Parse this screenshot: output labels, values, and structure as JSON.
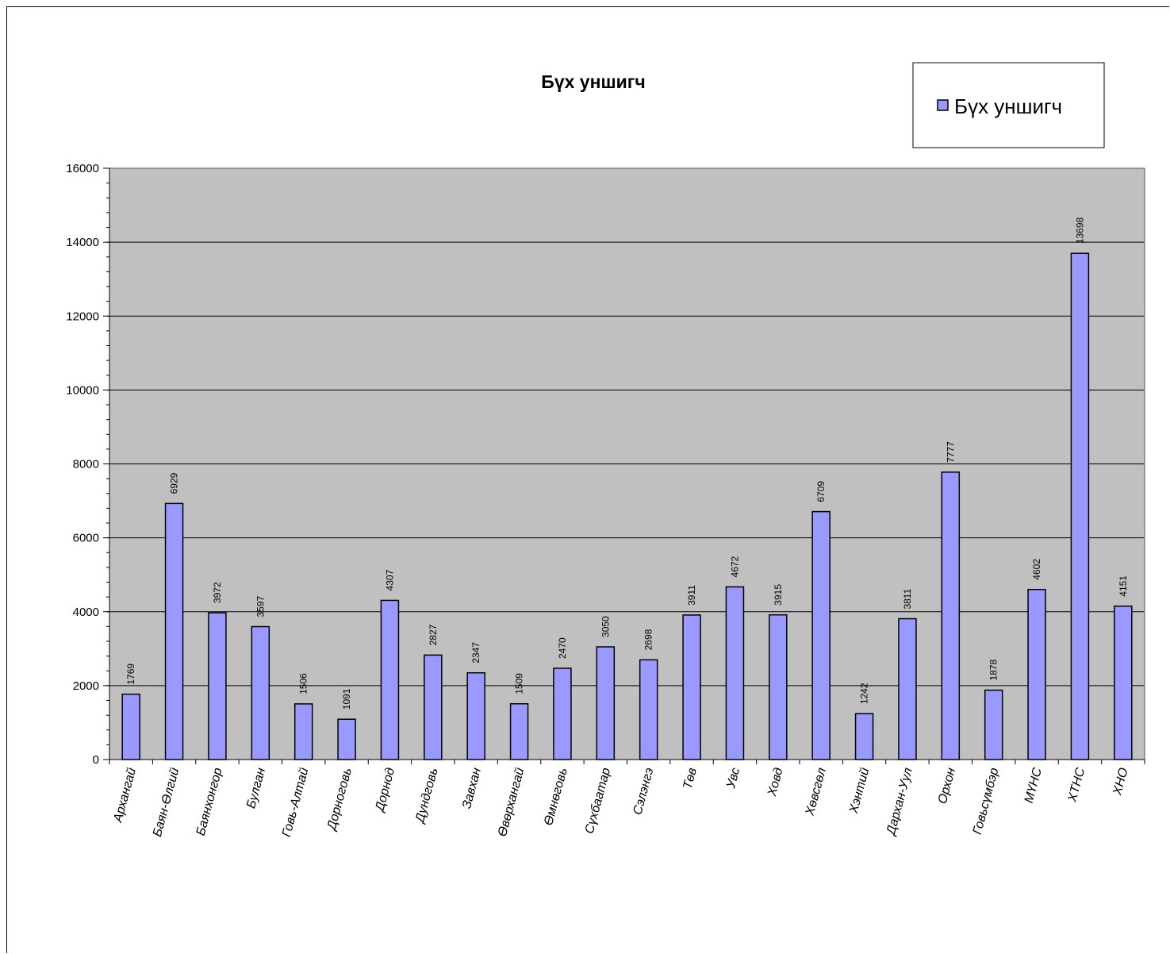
{
  "chart_data": {
    "type": "bar",
    "title": "Бүх уншигч",
    "legend": {
      "entries": [
        "Бүх уншигч"
      ],
      "placement": "top-right"
    },
    "categories": [
      "Архангай",
      "Баян-Өлгий",
      "Баянхонгор",
      "Булган",
      "Говь-Алтай",
      "Дорноговь",
      "Дорнод",
      "Дундговь",
      "Завхан",
      "Өвөрхангай",
      "Өмнөговь",
      "Сүхбаатар",
      "Сэлэнгэ",
      "Төв",
      "Увс",
      "Ховд",
      "Хөвсгөл",
      "Хэнтий",
      "Дархан-Уул",
      "Орхон",
      "Говьсүмбэр",
      "МҮНС",
      "ХТНС",
      "ХНО"
    ],
    "series": [
      {
        "name": "Бүх уншигч",
        "values": [
          1769,
          6929,
          3972,
          3597,
          1506,
          1091,
          4307,
          2827,
          2347,
          1509,
          2470,
          3050,
          2698,
          3911,
          4672,
          3915,
          6709,
          1242,
          3811,
          7777,
          1878,
          4602,
          13698,
          4151
        ]
      }
    ],
    "data_labels": [
      "1769",
      "6929",
      "3972",
      "3597",
      "1506",
      "1091",
      "4307",
      "2827",
      "2347",
      "1509",
      "2470",
      "3050",
      "2698",
      "3911",
      "4672",
      "3915",
      "6709",
      "1242",
      "3811",
      "7777",
      "1878",
      "4602",
      "13698",
      "4151"
    ],
    "y_ticks": [
      "0",
      "2000",
      "4000",
      "6000",
      "8000",
      "10000",
      "12000",
      "14000",
      "16000"
    ],
    "ylim": [
      0,
      16000
    ],
    "grid": true,
    "colors": {
      "bar": "#9999ff",
      "plot_bg": "#c0c0c0",
      "grid": "#000000"
    }
  }
}
